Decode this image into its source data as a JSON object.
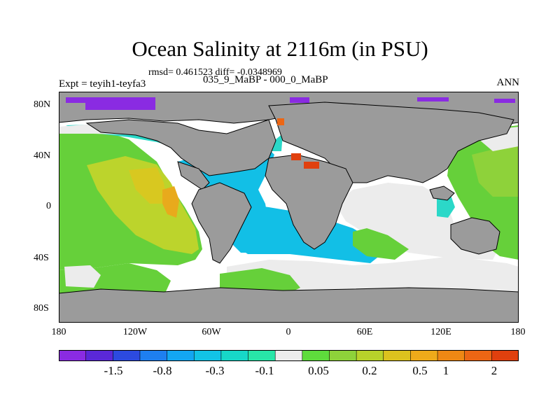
{
  "title": "Ocean Salinity at 2116m (in PSU)",
  "stats_line": "rmsd= 0.461523 diff= -0.0348969",
  "comparison_line": "035_9_MaBP - 000_0_MaBP",
  "experiment_label": "Expt = teyih1-teyfa3",
  "period_label": "ANN",
  "lat_ticks": [
    "80N",
    "40N",
    "0",
    "40S",
    "80S"
  ],
  "lon_ticks": [
    "180",
    "120W",
    "60W",
    "0",
    "60E",
    "120E",
    "180"
  ],
  "colorbar": {
    "colors": [
      "#8a2be2",
      "#5a28d8",
      "#2c4ae0",
      "#1e7ff0",
      "#13a6f2",
      "#12c3e6",
      "#17d8c8",
      "#28e6a8",
      "#ececec",
      "#5edc3c",
      "#8ed23a",
      "#b8d22a",
      "#dcc21e",
      "#eeaa1a",
      "#ee8814",
      "#ec6614",
      "#e0400e"
    ],
    "labels": [
      "-1.5",
      "-0.8",
      "-0.3",
      "-0.1",
      "0.05",
      "0.2",
      "0.5",
      "1",
      "2"
    ]
  },
  "map": {
    "land_color": "#9b9b9b",
    "missing_color": "#ffffff"
  }
}
